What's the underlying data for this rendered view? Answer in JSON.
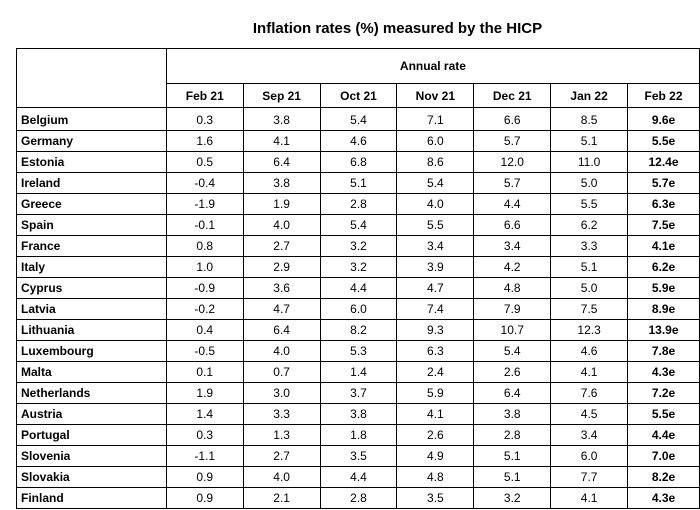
{
  "chart_data": {
    "type": "table",
    "title": "Inflation rates (%) measured by the HICP",
    "group_header": "Annual rate",
    "columns": [
      "Feb 21",
      "Sep 21",
      "Oct 21",
      "Nov 21",
      "Dec 21",
      "Jan 22",
      "Feb 22"
    ],
    "rows": [
      {
        "country": "Belgium",
        "values": [
          "0.3",
          "3.8",
          "5.4",
          "7.1",
          "6.6",
          "8.5",
          "9.6e"
        ]
      },
      {
        "country": "Germany",
        "values": [
          "1.6",
          "4.1",
          "4.6",
          "6.0",
          "5.7",
          "5.1",
          "5.5e"
        ]
      },
      {
        "country": "Estonia",
        "values": [
          "0.5",
          "6.4",
          "6.8",
          "8.6",
          "12.0",
          "11.0",
          "12.4e"
        ]
      },
      {
        "country": "Ireland",
        "values": [
          "-0.4",
          "3.8",
          "5.1",
          "5.4",
          "5.7",
          "5.0",
          "5.7e"
        ]
      },
      {
        "country": "Greece",
        "values": [
          "-1.9",
          "1.9",
          "2.8",
          "4.0",
          "4.4",
          "5.5",
          "6.3e"
        ]
      },
      {
        "country": "Spain",
        "values": [
          "-0.1",
          "4.0",
          "5.4",
          "5.5",
          "6.6",
          "6.2",
          "7.5e"
        ]
      },
      {
        "country": "France",
        "values": [
          "0.8",
          "2.7",
          "3.2",
          "3.4",
          "3.4",
          "3.3",
          "4.1e"
        ]
      },
      {
        "country": "Italy",
        "values": [
          "1.0",
          "2.9",
          "3.2",
          "3.9",
          "4.2",
          "5.1",
          "6.2e"
        ]
      },
      {
        "country": "Cyprus",
        "values": [
          "-0.9",
          "3.6",
          "4.4",
          "4.7",
          "4.8",
          "5.0",
          "5.9e"
        ]
      },
      {
        "country": "Latvia",
        "values": [
          "-0.2",
          "4.7",
          "6.0",
          "7.4",
          "7.9",
          "7.5",
          "8.9e"
        ]
      },
      {
        "country": "Lithuania",
        "values": [
          "0.4",
          "6.4",
          "8.2",
          "9.3",
          "10.7",
          "12.3",
          "13.9e"
        ]
      },
      {
        "country": "Luxembourg",
        "values": [
          "-0.5",
          "4.0",
          "5.3",
          "6.3",
          "5.4",
          "4.6",
          "7.8e"
        ]
      },
      {
        "country": "Malta",
        "values": [
          "0.1",
          "0.7",
          "1.4",
          "2.4",
          "2.6",
          "4.1",
          "4.3e"
        ]
      },
      {
        "country": "Netherlands",
        "values": [
          "1.9",
          "3.0",
          "3.7",
          "5.9",
          "6.4",
          "7.6",
          "7.2e"
        ]
      },
      {
        "country": "Austria",
        "values": [
          "1.4",
          "3.3",
          "3.8",
          "4.1",
          "3.8",
          "4.5",
          "5.5e"
        ]
      },
      {
        "country": "Portugal",
        "values": [
          "0.3",
          "1.3",
          "1.8",
          "2.6",
          "2.8",
          "3.4",
          "4.4e"
        ]
      },
      {
        "country": "Slovenia",
        "values": [
          "-1.1",
          "2.7",
          "3.5",
          "4.9",
          "5.1",
          "6.0",
          "7.0e"
        ]
      },
      {
        "country": "Slovakia",
        "values": [
          "0.9",
          "4.0",
          "4.4",
          "4.8",
          "5.1",
          "7.7",
          "8.2e"
        ]
      },
      {
        "country": "Finland",
        "values": [
          "0.9",
          "2.1",
          "2.8",
          "3.5",
          "3.2",
          "4.1",
          "4.3e"
        ]
      }
    ]
  }
}
